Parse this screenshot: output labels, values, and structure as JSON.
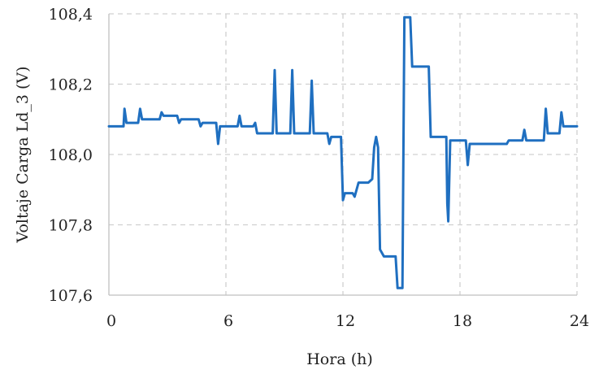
{
  "chart_data": {
    "type": "line",
    "xlabel": "Hora (h)",
    "ylabel": "Voltaje Carga Ld_3 (V)",
    "xlim": [
      0,
      24
    ],
    "ylim": [
      107.6,
      108.4
    ],
    "xticks": [
      0,
      6,
      12,
      18,
      24
    ],
    "xtick_labels": [
      "0",
      "6",
      "12",
      "18",
      "24"
    ],
    "yticks": [
      107.6,
      107.8,
      108.0,
      108.2,
      108.4
    ],
    "ytick_labels": [
      "107,6",
      "107,8",
      "108,0",
      "108,2",
      "108,4"
    ],
    "grid": true,
    "line_color": "#1f6fc0",
    "series": [
      {
        "x": [
          0,
          0.75,
          0.8,
          0.9,
          1.5,
          1.6,
          1.7,
          2.6,
          2.7,
          2.8,
          3.5,
          3.6,
          3.7,
          4.6,
          4.7,
          4.8,
          5.5,
          5.6,
          5.7,
          6.6,
          6.7,
          6.8,
          7.4,
          7.5,
          7.6,
          8.4,
          8.5,
          8.6,
          9.3,
          9.4,
          9.5,
          10.3,
          10.4,
          10.5,
          11.2,
          11.3,
          11.4,
          11.9,
          12.0,
          12.1,
          12.5,
          12.6,
          12.8,
          13.3,
          13.5,
          13.6,
          13.7,
          13.8,
          13.9,
          14.1,
          14.2,
          14.7,
          14.8,
          15.05,
          15.15,
          15.45,
          15.55,
          16.4,
          16.5,
          17.3,
          17.35,
          17.4,
          17.5,
          18.3,
          18.4,
          18.5,
          20.4,
          20.5,
          21.2,
          21.3,
          21.4,
          22.3,
          22.4,
          22.5,
          23.1,
          23.2,
          23.3,
          24
        ],
        "y": [
          108.08,
          108.08,
          108.13,
          108.09,
          108.09,
          108.13,
          108.1,
          108.1,
          108.12,
          108.11,
          108.11,
          108.09,
          108.1,
          108.1,
          108.08,
          108.09,
          108.09,
          108.03,
          108.08,
          108.08,
          108.11,
          108.08,
          108.08,
          108.09,
          108.06,
          108.06,
          108.24,
          108.06,
          108.06,
          108.24,
          108.06,
          108.06,
          108.21,
          108.06,
          108.06,
          108.03,
          108.05,
          108.05,
          107.87,
          107.89,
          107.89,
          107.88,
          107.92,
          107.92,
          107.93,
          108.02,
          108.05,
          108.02,
          107.73,
          107.71,
          107.71,
          107.71,
          107.62,
          107.62,
          108.39,
          108.39,
          108.25,
          108.25,
          108.05,
          108.05,
          107.86,
          107.81,
          108.04,
          108.04,
          107.97,
          108.03,
          108.03,
          108.04,
          108.04,
          108.07,
          108.04,
          108.04,
          108.13,
          108.06,
          108.06,
          108.12,
          108.08,
          108.08
        ]
      }
    ]
  }
}
